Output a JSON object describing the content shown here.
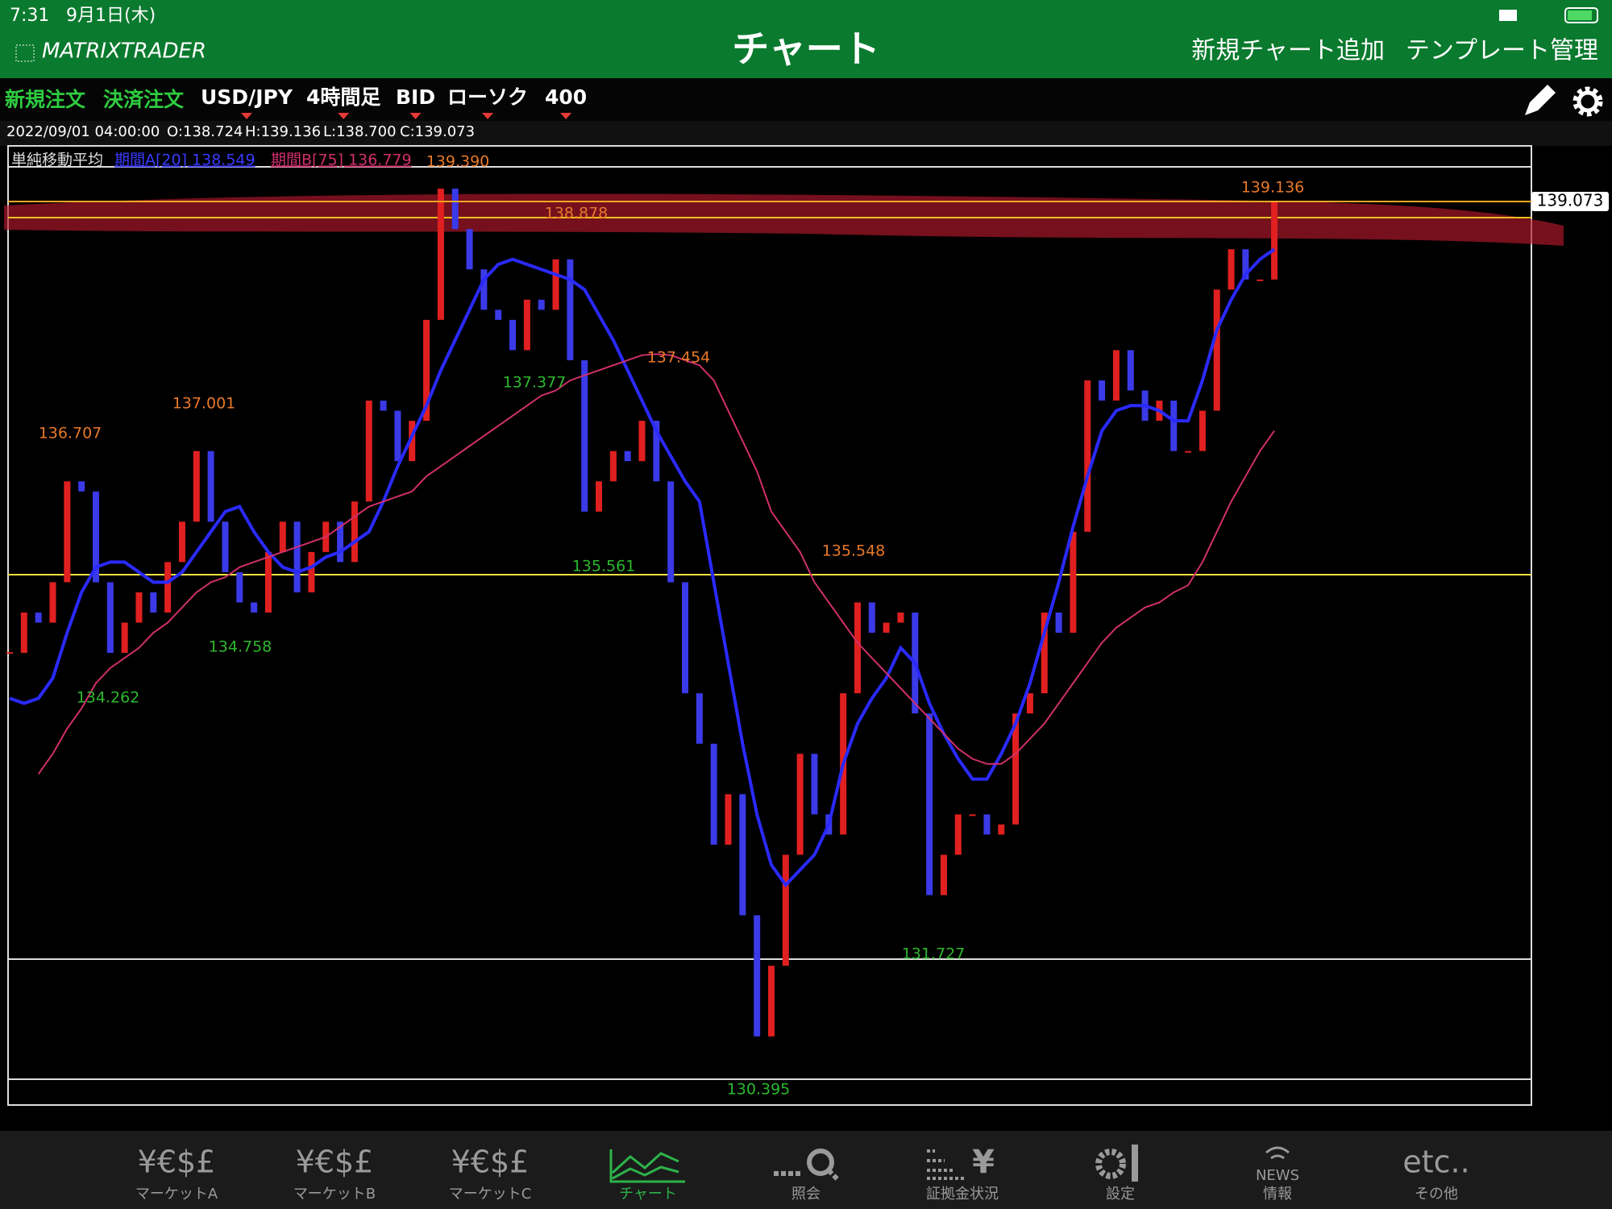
{
  "status_bar": {
    "time": "7:31",
    "date": "9月1日(木)"
  },
  "header": {
    "logo": "MATRIXTRADER",
    "title": "チャート",
    "actions": [
      "新規チャート追加",
      "テンプレート管理"
    ]
  },
  "toolbar": {
    "order_buttons": [
      "新規注文",
      "決済注文"
    ],
    "selectors": [
      "USD/JPY",
      "4時間足",
      "BID",
      "ローソク",
      "400"
    ]
  },
  "info_line": [
    "2022/09/01 04:00:00",
    "O:138.724",
    "H:139.136",
    "L:138.700",
    "C:139.073"
  ],
  "legend": {
    "indicator": "単純移動平均",
    "ma_a": "期間A[20] 138.549",
    "ma_b": "期間B[75] 136.779"
  },
  "chart_data": {
    "type": "candlestick",
    "current_price": 139.073,
    "current_price_label": "139.073",
    "ylim": [
      130.12,
      139.6
    ],
    "closes": [
      134.6,
      135.0,
      134.9,
      135.3,
      136.3,
      136.2,
      135.3,
      134.6,
      134.9,
      135.2,
      135.0,
      135.5,
      135.9,
      136.6,
      135.9,
      135.4,
      135.1,
      135.0,
      135.6,
      135.9,
      135.2,
      135.6,
      135.9,
      135.5,
      136.1,
      137.1,
      137.0,
      136.5,
      136.9,
      137.9,
      139.2,
      138.8,
      138.4,
      138.0,
      137.9,
      137.6,
      138.1,
      138.0,
      138.5,
      137.5,
      136.0,
      136.3,
      136.6,
      136.5,
      136.9,
      136.3,
      135.3,
      134.2,
      133.7,
      132.7,
      133.2,
      132.0,
      130.8,
      131.5,
      132.6,
      133.6,
      133.0,
      132.8,
      134.2,
      135.1,
      134.8,
      134.9,
      135.0,
      134.0,
      132.2,
      132.6,
      133.0,
      133.0,
      132.8,
      132.9,
      134.0,
      134.2,
      135.0,
      134.8,
      135.8,
      137.3,
      137.1,
      137.6,
      137.2,
      136.9,
      137.1,
      136.6,
      136.6,
      137.0,
      138.2,
      138.6,
      138.3,
      138.3,
      139.073
    ],
    "series": [
      {
        "name": "期間A[20]",
        "color": "#2a2aff",
        "values": [
          134.15,
          134.1,
          134.15,
          134.35,
          134.8,
          135.2,
          135.45,
          135.5,
          135.5,
          135.4,
          135.3,
          135.3,
          135.4,
          135.6,
          135.8,
          136.0,
          136.05,
          135.8,
          135.6,
          135.45,
          135.4,
          135.45,
          135.55,
          135.6,
          135.7,
          135.8,
          136.1,
          136.45,
          136.75,
          137.05,
          137.4,
          137.7,
          138.0,
          138.3,
          138.45,
          138.5,
          138.45,
          138.4,
          138.35,
          138.3,
          138.2,
          137.95,
          137.7,
          137.4,
          137.1,
          136.8,
          136.55,
          136.3,
          136.1,
          135.3,
          134.5,
          133.7,
          133.0,
          132.5,
          132.3,
          132.45,
          132.6,
          132.9,
          133.5,
          133.9,
          134.15,
          134.35,
          134.65,
          134.5,
          134.1,
          133.8,
          133.55,
          133.35,
          133.35,
          133.6,
          133.9,
          134.3,
          134.8,
          135.3,
          135.85,
          136.35,
          136.8,
          137.0,
          137.05,
          137.05,
          137.0,
          136.9,
          136.9,
          137.3,
          137.8,
          138.1,
          138.35,
          138.5,
          138.6
        ]
      },
      {
        "name": "期間B[75]",
        "color": "#d0306a",
        "values": [
          null,
          null,
          133.4,
          133.6,
          133.85,
          134.05,
          134.3,
          134.45,
          134.55,
          134.65,
          134.8,
          134.9,
          135.05,
          135.2,
          135.3,
          135.35,
          135.45,
          135.5,
          135.55,
          135.6,
          135.65,
          135.7,
          135.75,
          135.85,
          135.95,
          136.05,
          136.1,
          136.15,
          136.2,
          136.35,
          136.45,
          136.55,
          136.65,
          136.75,
          136.85,
          136.95,
          137.05,
          137.15,
          137.2,
          137.3,
          137.35,
          137.4,
          137.45,
          137.5,
          137.55,
          137.56,
          137.55,
          137.5,
          137.45,
          137.3,
          137.0,
          136.7,
          136.4,
          136.0,
          135.8,
          135.6,
          135.3,
          135.1,
          134.9,
          134.7,
          134.55,
          134.4,
          134.25,
          134.1,
          133.95,
          133.8,
          133.65,
          133.55,
          133.5,
          133.5,
          133.6,
          133.75,
          133.9,
          134.1,
          134.3,
          134.5,
          134.7,
          134.85,
          134.95,
          135.05,
          135.1,
          135.2,
          135.27,
          135.5,
          135.8,
          136.1,
          136.35,
          136.6,
          136.8
        ]
      }
    ],
    "high_labels": [
      "136.707",
      "137.001",
      "139.390",
      "138.878",
      "137.454",
      "135.548",
      "139.136"
    ],
    "low_labels": [
      "134.262",
      "134.758",
      "137.377",
      "135.561",
      "131.727",
      "130.395"
    ]
  },
  "tab_bar": [
    {
      "icon": "¥€$£",
      "label": "マーケットA"
    },
    {
      "icon": "¥€$£",
      "label": "マーケットB"
    },
    {
      "icon": "¥€$£",
      "label": "マーケットC"
    },
    {
      "label": "チャート"
    },
    {
      "label": "照会"
    },
    {
      "icon": "¥",
      "label": "証拠金状況"
    },
    {
      "label": "設定"
    },
    {
      "icon": "NEWS",
      "label": "情報"
    },
    {
      "icon": "etc..",
      "label": "その他"
    }
  ]
}
